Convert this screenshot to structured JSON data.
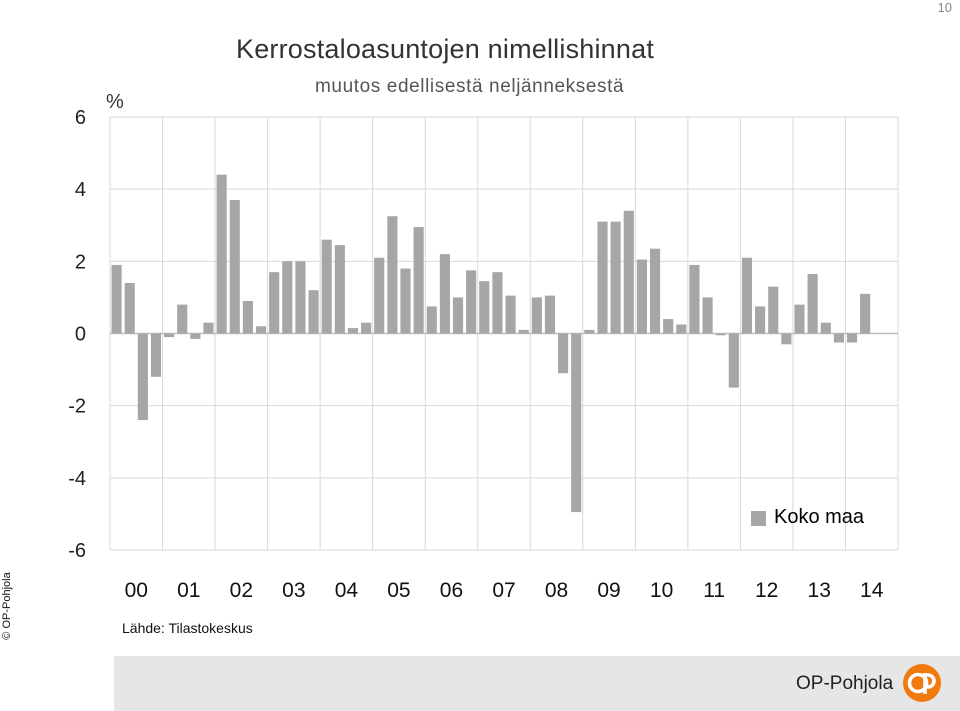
{
  "page": {
    "number": "10"
  },
  "header": {
    "title": "Kerrostaloasuntojen nimellishinnat",
    "subtitle": "muutos edellisestä neljänneksestä",
    "unit": "%"
  },
  "footer": {
    "copyright": "© OP-Pohjola",
    "source": "Lähde: Tilastokeskus",
    "brand": "OP-Pohjola",
    "brand_color": "#f07a10"
  },
  "chart_data": {
    "type": "bar",
    "title": "Kerrostaloasuntojen nimellishinnat",
    "subtitle": "muutos edellisestä neljänneksestä",
    "ylabel": "%",
    "ylim": [
      -6,
      6
    ],
    "yticks": [
      6,
      4,
      2,
      0,
      -2,
      -4,
      -6
    ],
    "xtick_labels": [
      "00",
      "01",
      "02",
      "03",
      "04",
      "05",
      "06",
      "07",
      "08",
      "09",
      "10",
      "11",
      "12",
      "13",
      "14"
    ],
    "grid": true,
    "legend_position": "bottom-right",
    "bar_color": "#a6a6a6",
    "series": [
      {
        "name": "Koko maa",
        "values": [
          1.9,
          1.4,
          -2.4,
          -1.2,
          -0.1,
          0.8,
          -0.15,
          0.3,
          4.4,
          3.7,
          0.9,
          0.2,
          1.7,
          2.0,
          2.0,
          1.2,
          2.6,
          2.45,
          0.15,
          0.3,
          2.1,
          3.25,
          1.8,
          2.95,
          0.75,
          2.2,
          1.0,
          1.75,
          1.45,
          1.7,
          1.05,
          0.1,
          1.0,
          1.05,
          -1.1,
          -4.95,
          0.1,
          3.1,
          3.1,
          3.4,
          2.05,
          2.35,
          0.4,
          0.25,
          1.9,
          1.0,
          -0.05,
          -1.5,
          2.1,
          0.75,
          1.3,
          -0.3,
          0.8,
          1.65,
          0.3,
          -0.25,
          -0.25,
          1.1
        ]
      }
    ]
  }
}
